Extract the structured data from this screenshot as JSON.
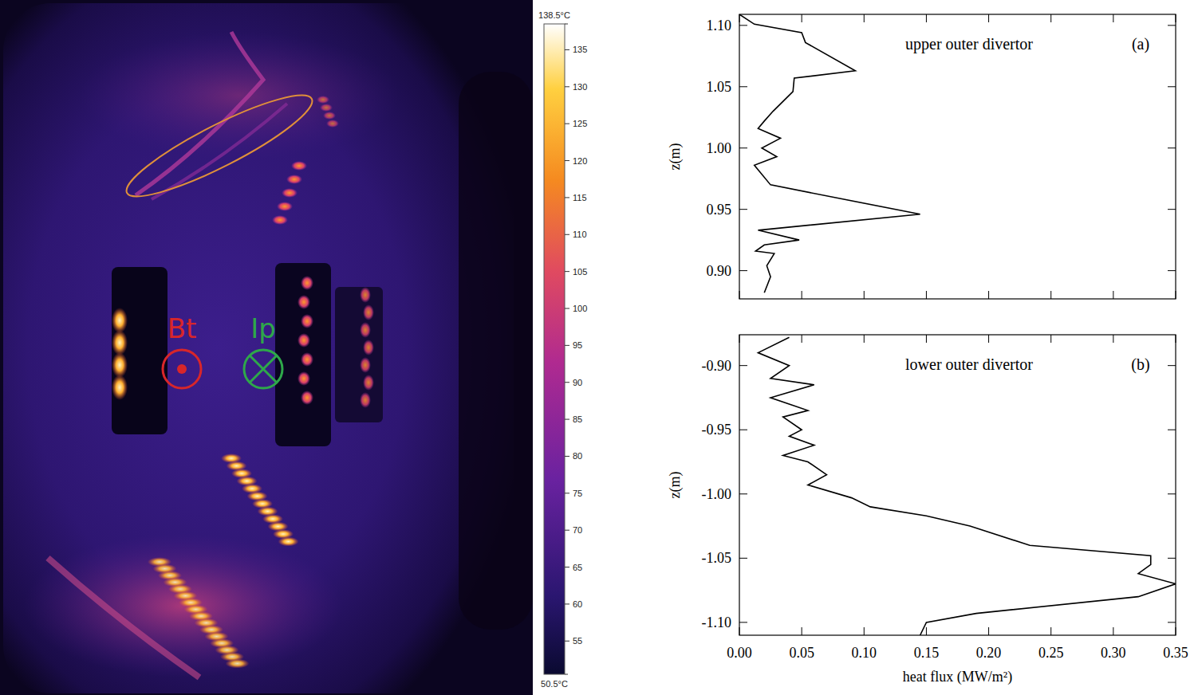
{
  "thermal_image": {
    "annotations": [
      "Bt",
      "Ip"
    ],
    "colorbar": {
      "range": [
        50.5,
        138.5
      ],
      "ticks": [
        55,
        60,
        65,
        70,
        75,
        80,
        85,
        90,
        95,
        100,
        105,
        110,
        115,
        120,
        125,
        130,
        135
      ],
      "end_labels": [
        {
          "value": 50.5,
          "label": "50.5°C"
        },
        {
          "value": 138.5,
          "label": "138.5°C"
        }
      ]
    }
  },
  "chart_data": [
    {
      "type": "line",
      "title": "upper outer divertor",
      "panel_label": "(a)",
      "y_label": "z(m)",
      "xlim": [
        0,
        0.35
      ],
      "ylim": [
        0.877,
        1.109
      ],
      "xticks": [
        {
          "value": 0,
          "label": "0.00"
        },
        0.05,
        {
          "value": 0.1,
          "label": "0.10"
        },
        0.15,
        {
          "value": 0.2,
          "label": "0.20"
        },
        0.25,
        {
          "value": 0.3,
          "label": "0.30"
        },
        0.35
      ],
      "yticks": [
        {
          "value": 0.9,
          "label": "0.90"
        },
        0.95,
        {
          "value": 1,
          "label": "1.00"
        },
        1.05,
        {
          "value": 1.1,
          "label": "1.10"
        }
      ],
      "tick_labels": "y",
      "x": [
        0.0,
        0.012,
        0.05,
        0.053,
        0.093,
        0.044,
        0.043,
        0.027,
        0.02,
        0.015,
        0.033,
        0.018,
        0.03,
        0.012,
        0.025,
        0.145,
        0.015,
        0.048,
        0.02,
        0.013,
        0.028,
        0.022,
        0.025,
        0.02
      ],
      "series": [
        {
          "color": "#000000",
          "values": [
            1.109,
            1.101,
            1.094,
            1.086,
            1.063,
            1.057,
            1.046,
            1.03,
            1.022,
            1.016,
            1.008,
            1.0,
            0.993,
            0.986,
            0.97,
            0.946,
            0.933,
            0.925,
            0.921,
            0.916,
            0.914,
            0.904,
            0.895,
            0.882
          ]
        }
      ]
    },
    {
      "type": "line",
      "title": "lower outer divertor",
      "panel_label": "(b)",
      "y_label": "z(m)",
      "x_label": "heat flux (MW/m²)",
      "xlim": [
        0,
        0.35
      ],
      "ylim": [
        -1.11,
        -0.876
      ],
      "xticks": [
        {
          "value": 0,
          "label": "0.00"
        },
        0.05,
        {
          "value": 0.1,
          "label": "0.10"
        },
        0.15,
        {
          "value": 0.2,
          "label": "0.20"
        },
        0.25,
        {
          "value": 0.3,
          "label": "0.30"
        },
        0.35
      ],
      "yticks": [
        {
          "value": -1.1,
          "label": "-1.10"
        },
        -1.05,
        {
          "value": -1,
          "label": "-1.00"
        },
        -0.95,
        {
          "value": -0.9,
          "label": "-0.90"
        }
      ],
      "tick_labels": true,
      "x": [
        0.04,
        0.015,
        0.04,
        0.025,
        0.06,
        0.025,
        0.055,
        0.035,
        0.05,
        0.04,
        0.06,
        0.035,
        0.055,
        0.07,
        0.055,
        0.09,
        0.105,
        0.15,
        0.185,
        0.233,
        0.33,
        0.33,
        0.32,
        0.35,
        0.32,
        0.19,
        0.15,
        0.145
      ],
      "series": [
        {
          "color": "#000000",
          "values": [
            -0.878,
            -0.89,
            -0.9,
            -0.91,
            -0.915,
            -0.925,
            -0.935,
            -0.94,
            -0.95,
            -0.955,
            -0.962,
            -0.97,
            -0.975,
            -0.985,
            -0.993,
            -1.003,
            -1.01,
            -1.017,
            -1.025,
            -1.04,
            -1.048,
            -1.055,
            -1.062,
            -1.07,
            -1.08,
            -1.093,
            -1.1,
            -1.11
          ]
        }
      ]
    }
  ]
}
